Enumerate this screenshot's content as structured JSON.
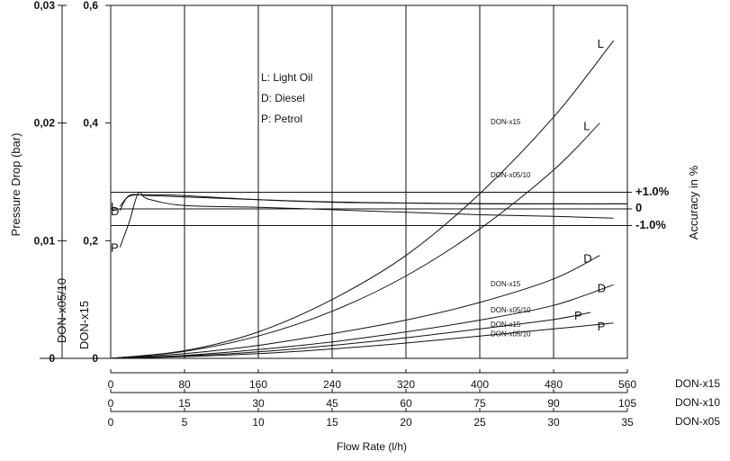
{
  "chart_data": {
    "type": "line",
    "ylabel_left": "Pressure Drop (bar)",
    "ylabel_right": "Accuracy in %",
    "xlabel": "Flow Rate (l/h)",
    "model_axis_labels": [
      "DON-x05/10",
      "DON-x15"
    ],
    "legend": [
      "L: Light Oil",
      "D: Diesel",
      "P: Petrol"
    ],
    "x_axes": [
      {
        "model": "DON-x15",
        "ticks": [
          "0",
          "80",
          "160",
          "240",
          "320",
          "400",
          "480",
          "560"
        ]
      },
      {
        "model": "DON-x10",
        "ticks": [
          "0",
          "15",
          "30",
          "45",
          "60",
          "75",
          "90",
          "105"
        ]
      },
      {
        "model": "DON-x05",
        "ticks": [
          "0",
          "5",
          "10",
          "15",
          "20",
          "25",
          "30",
          "35"
        ]
      }
    ],
    "y_ticks_outer": [
      "0",
      "0,01",
      "0,02",
      "0,03"
    ],
    "y_ticks_inner": [
      "0",
      "0,2",
      "0,4",
      "0,6"
    ],
    "accuracy_labels": [
      "+1.0%",
      "0",
      "-1.0%"
    ],
    "xlim": [
      0,
      560
    ],
    "ylim": [
      0,
      0.6
    ],
    "series": [
      {
        "name": "DON-x15",
        "end_label": "L",
        "x": [
          0,
          80,
          160,
          240,
          320,
          400,
          480,
          545
        ],
        "y": [
          0,
          0.013,
          0.045,
          0.1,
          0.175,
          0.28,
          0.41,
          0.54
        ]
      },
      {
        "name": "DON-x05/10",
        "end_label": "L",
        "x": [
          0,
          80,
          160,
          240,
          320,
          400,
          480,
          530
        ],
        "y": [
          0,
          0.012,
          0.038,
          0.08,
          0.14,
          0.22,
          0.32,
          0.4
        ]
      },
      {
        "name": "DON-x15",
        "end_label": "D",
        "x": [
          0,
          80,
          160,
          240,
          320,
          400,
          480,
          530
        ],
        "y": [
          0,
          0.008,
          0.022,
          0.042,
          0.065,
          0.095,
          0.135,
          0.175
        ]
      },
      {
        "name": "DON-x05/10",
        "end_label": "D",
        "x": [
          0,
          80,
          160,
          240,
          320,
          400,
          480,
          545
        ],
        "y": [
          0,
          0.005,
          0.015,
          0.028,
          0.045,
          0.065,
          0.09,
          0.125
        ]
      },
      {
        "name": "DON-x15",
        "end_label": "P",
        "x": [
          0,
          80,
          160,
          240,
          320,
          400,
          480,
          520
        ],
        "y": [
          0,
          0.004,
          0.011,
          0.022,
          0.035,
          0.05,
          0.066,
          0.078
        ]
      },
      {
        "name": "DON-x05/10",
        "end_label": "P",
        "x": [
          0,
          80,
          160,
          240,
          320,
          400,
          480,
          545
        ],
        "y": [
          0,
          0.003,
          0.008,
          0.016,
          0.026,
          0.038,
          0.05,
          0.06
        ]
      }
    ],
    "accuracy_series": [
      {
        "label": "L",
        "x": [
          10,
          20,
          40,
          80,
          160,
          240,
          320,
          400,
          480,
          560
        ],
        "y": [
          0.15,
          0.75,
          0.85,
          0.8,
          0.55,
          0.4,
          0.35,
          0.3,
          0.3,
          0.3
        ]
      },
      {
        "label": "D",
        "x": [
          10,
          20,
          40,
          80,
          160,
          240,
          320,
          400,
          480,
          560
        ],
        "y": [
          -0.1,
          0.8,
          0.8,
          0.72,
          0.55,
          0.42,
          0.35,
          0.32,
          0.3,
          0.3
        ]
      },
      {
        "label": "P",
        "x": [
          10,
          20,
          30,
          40,
          80,
          160,
          240,
          320,
          400,
          480,
          545
        ],
        "y": [
          -2.3,
          -0.8,
          0.95,
          0.6,
          0.2,
          0.1,
          -0.05,
          -0.2,
          -0.35,
          -0.45,
          -0.55
        ]
      }
    ],
    "grid": true
  }
}
